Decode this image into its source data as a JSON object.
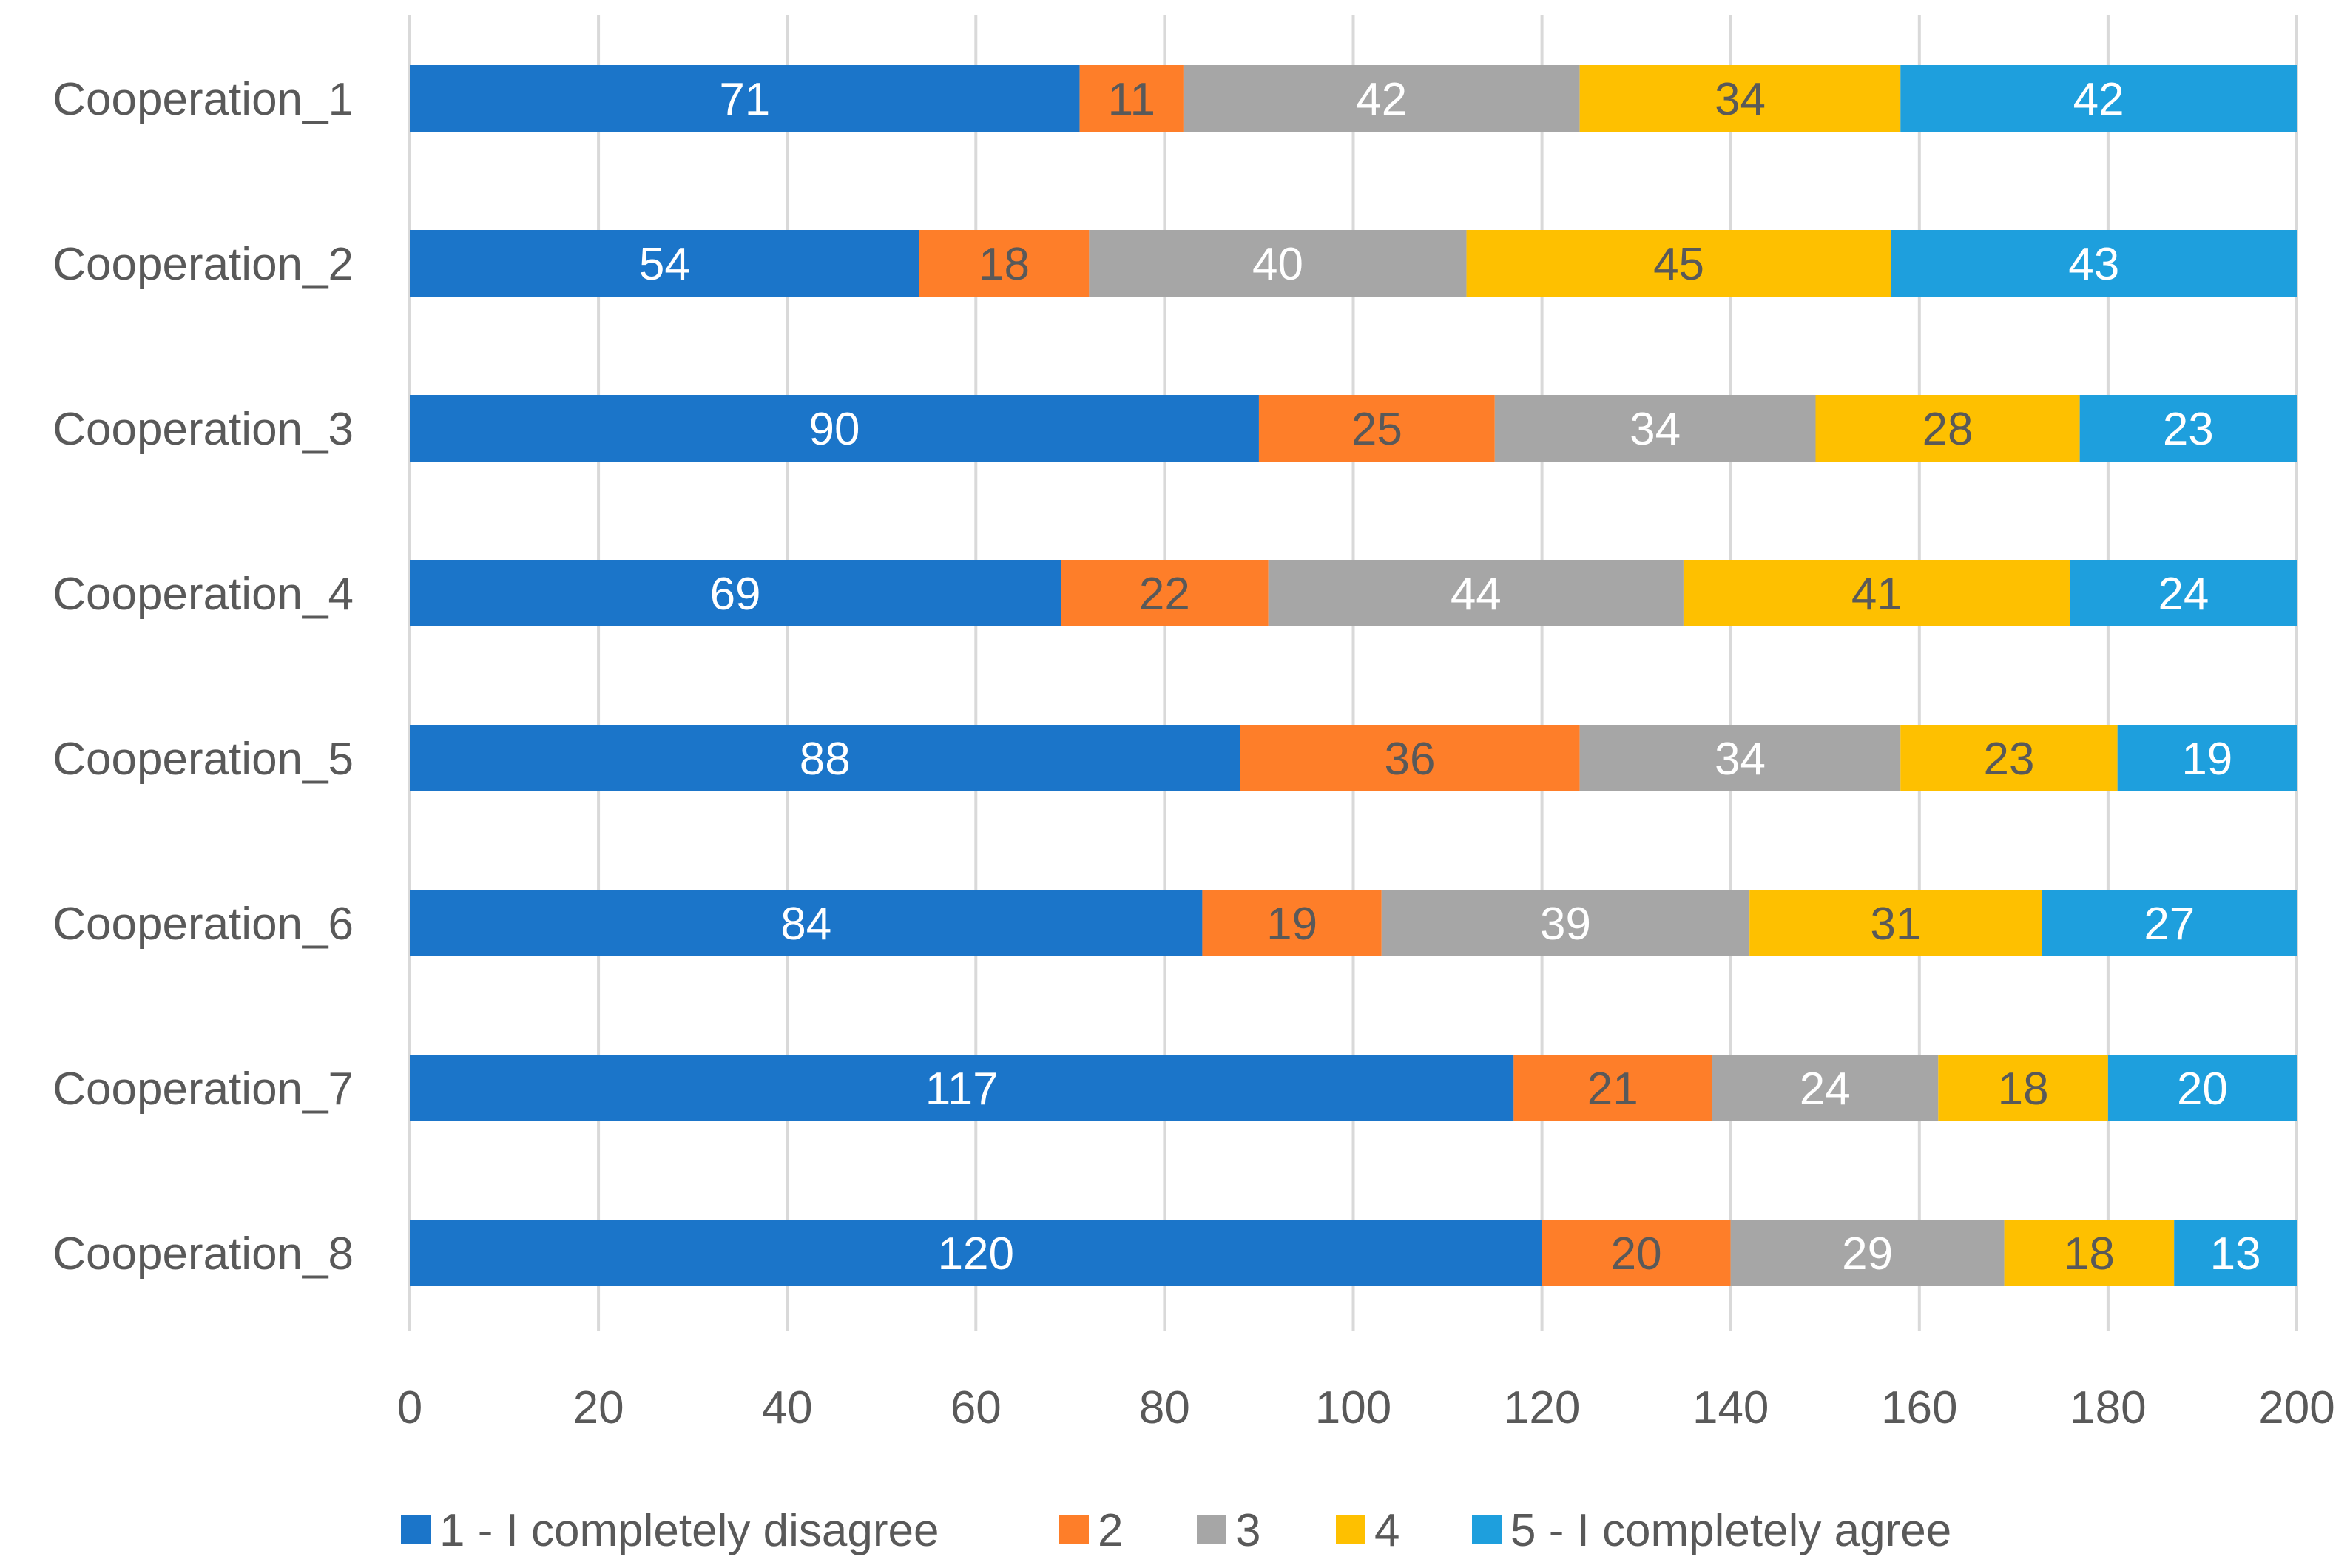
{
  "chart_data": {
    "type": "bar",
    "orientation": "horizontal",
    "stacked": true,
    "title": "",
    "xlabel": "",
    "ylabel": "",
    "xlim": [
      0,
      200
    ],
    "x_ticks": [
      0,
      20,
      40,
      60,
      80,
      100,
      120,
      140,
      160,
      180,
      200
    ],
    "grid": "vertical",
    "legend_position": "bottom",
    "categories": [
      "Cooperation_1",
      "Cooperation_2",
      "Cooperation_3",
      "Cooperation_4",
      "Cooperation_5",
      "Cooperation_6",
      "Cooperation_7",
      "Cooperation_8"
    ],
    "series": [
      {
        "name": "1 - I completely disagree",
        "color": "#1b75c9",
        "label_color": "#ffffff",
        "values": [
          71,
          54,
          90,
          69,
          88,
          84,
          117,
          120
        ]
      },
      {
        "name": "2",
        "color": "#fe7e29",
        "label_color": "#595959",
        "values": [
          11,
          18,
          25,
          22,
          36,
          19,
          21,
          20
        ]
      },
      {
        "name": "3",
        "color": "#a6a6a6",
        "label_color": "#ffffff",
        "values": [
          42,
          40,
          34,
          44,
          34,
          39,
          24,
          29
        ]
      },
      {
        "name": "4",
        "color": "#fec000",
        "label_color": "#595959",
        "values": [
          34,
          45,
          28,
          41,
          23,
          31,
          18,
          18
        ]
      },
      {
        "name": "5 - I completely agree",
        "color": "#1e9fdd",
        "label_color": "#ffffff",
        "values": [
          42,
          43,
          23,
          24,
          19,
          27,
          20,
          13
        ]
      }
    ]
  }
}
